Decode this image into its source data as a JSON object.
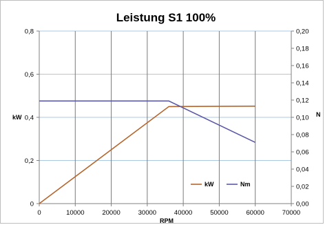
{
  "chart_data": {
    "type": "line",
    "title": "Leistung S1 100%",
    "xlabel": "RPM",
    "ylabel_left": "kW",
    "ylabel_right": "N",
    "xlim": [
      0,
      70000
    ],
    "ylim_left": [
      0,
      0.8
    ],
    "ylim_right": [
      0,
      0.2
    ],
    "x_ticks": [
      "0",
      "10000",
      "20000",
      "30000",
      "40000",
      "50000",
      "60000",
      "70000"
    ],
    "x_tick_values": [
      0,
      10000,
      20000,
      30000,
      40000,
      50000,
      60000,
      70000
    ],
    "y_left_ticks": [
      "0",
      "0,2",
      "0,4",
      "0,6",
      "0,8"
    ],
    "y_left_tick_values": [
      0,
      0.2,
      0.4,
      0.6,
      0.8
    ],
    "y_right_ticks": [
      "0,00",
      "0,02",
      "0,04",
      "0,06",
      "0,08",
      "0,10",
      "0,12",
      "0,14",
      "0,16",
      "0,18",
      "0,20"
    ],
    "y_right_tick_values": [
      0,
      0.02,
      0.04,
      0.06,
      0.08,
      0.1,
      0.12,
      0.14,
      0.16,
      0.18,
      0.2
    ],
    "grid": true,
    "legend_position": "bottom-right",
    "series": [
      {
        "name": "kW",
        "axis": "left",
        "color": "#b5652c",
        "x": [
          0,
          36000,
          60000
        ],
        "y": [
          0,
          0.45,
          0.452
        ]
      },
      {
        "name": "Nm",
        "axis": "right",
        "color": "#5b58a6",
        "x": [
          0,
          36000,
          60000
        ],
        "y": [
          0.119,
          0.119,
          0.071
        ]
      }
    ]
  }
}
